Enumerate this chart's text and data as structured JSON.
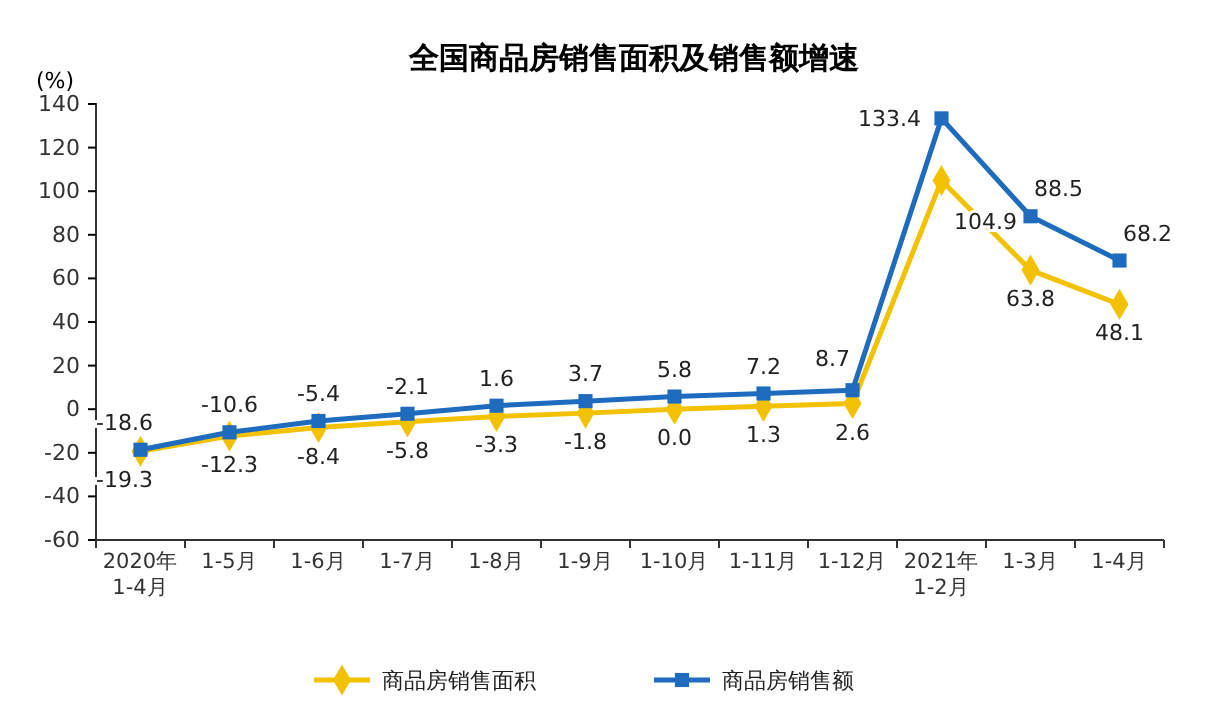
{
  "chart_data": {
    "type": "line",
    "title": "全国商品房销售面积及销售额增速",
    "ylabel": "(%)",
    "categories": [
      "2020年\n1-4月",
      "1-5月",
      "1-6月",
      "1-7月",
      "1-8月",
      "1-9月",
      "1-10月",
      "1-11月",
      "1-12月",
      "2021年\n1-2月",
      "1-3月",
      "1-4月"
    ],
    "series": [
      {
        "name": "商品房销售面积",
        "color": "#f2c200",
        "marker": "diamond",
        "values": [
          -19.3,
          -12.3,
          -8.4,
          -5.8,
          -3.3,
          -1.8,
          0.0,
          1.3,
          2.6,
          104.9,
          63.8,
          48.1
        ],
        "value_labels": [
          "-19.3",
          "-12.3",
          "-8.4",
          "-5.8",
          "-3.3",
          "-1.8",
          "0.0",
          "1.3",
          "2.6",
          "104.9",
          "63.8",
          "48.1"
        ]
      },
      {
        "name": "商品房销售额",
        "color": "#1f6cbf",
        "marker": "square",
        "values": [
          -18.6,
          -10.6,
          -5.4,
          -2.1,
          1.6,
          3.7,
          5.8,
          7.2,
          8.7,
          133.4,
          88.5,
          68.2
        ],
        "value_labels": [
          "-18.6",
          "-10.6",
          "-5.4",
          "-2.1",
          "1.6",
          "3.7",
          "5.8",
          "7.2",
          "8.7",
          "133.4",
          "88.5",
          "68.2"
        ]
      }
    ],
    "ylim": [
      -60,
      140
    ],
    "yticks": [
      -60,
      -40,
      -20,
      0,
      20,
      40,
      60,
      80,
      100,
      120,
      140
    ],
    "grid": false,
    "legend": "bottom",
    "line_style": "solid"
  }
}
